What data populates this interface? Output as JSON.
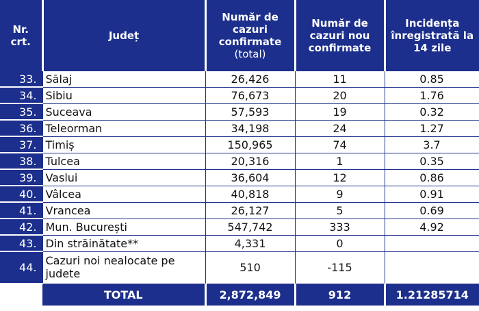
{
  "headers": {
    "nr": "Nr. crt.",
    "judet": "Județ",
    "total_cazuri": "Număr de cazuri confirmate",
    "total_sub": "(total)",
    "noi": "Număr de cazuri nou confirmate",
    "incidenta": "Incidența înregistrată la 14 zile"
  },
  "rows": [
    {
      "nr": "33.",
      "judet": "Sălaj",
      "total": "26,426",
      "noi": "11",
      "incidenta": "0.85"
    },
    {
      "nr": "34.",
      "judet": "Sibiu",
      "total": "76,673",
      "noi": "20",
      "incidenta": "1.76"
    },
    {
      "nr": "35.",
      "judet": "Suceava",
      "total": "57,593",
      "noi": "19",
      "incidenta": "0.32"
    },
    {
      "nr": "36.",
      "judet": "Teleorman",
      "total": "34,198",
      "noi": "24",
      "incidenta": "1.27"
    },
    {
      "nr": "37.",
      "judet": "Timiș",
      "total": "150,965",
      "noi": "74",
      "incidenta": "3.7"
    },
    {
      "nr": "38.",
      "judet": "Tulcea",
      "total": "20,316",
      "noi": "1",
      "incidenta": "0.35"
    },
    {
      "nr": "39.",
      "judet": "Vaslui",
      "total": "36,604",
      "noi": "12",
      "incidenta": "0.86"
    },
    {
      "nr": "40.",
      "judet": "Vâlcea",
      "total": "40,818",
      "noi": "9",
      "incidenta": "0.91"
    },
    {
      "nr": "41.",
      "judet": "Vrancea",
      "total": "26,127",
      "noi": "5",
      "incidenta": "0.69"
    },
    {
      "nr": "42.",
      "judet": "Mun. București",
      "total": "547,742",
      "noi": "333",
      "incidenta": "4.92"
    },
    {
      "nr": "43.",
      "judet": "Din străinătate**",
      "total": "4,331",
      "noi": "0",
      "incidenta": ""
    },
    {
      "nr": "44.",
      "judet": "Cazuri noi nealocate pe judete",
      "total": "510",
      "noi": "-115",
      "incidenta": ""
    }
  ],
  "total": {
    "label": "TOTAL",
    "total": "2,872,849",
    "noi": "912",
    "incidenta": "1.21285714"
  },
  "colors": {
    "header_bg": "#1c2f8c",
    "text_light": "#ffffff"
  }
}
